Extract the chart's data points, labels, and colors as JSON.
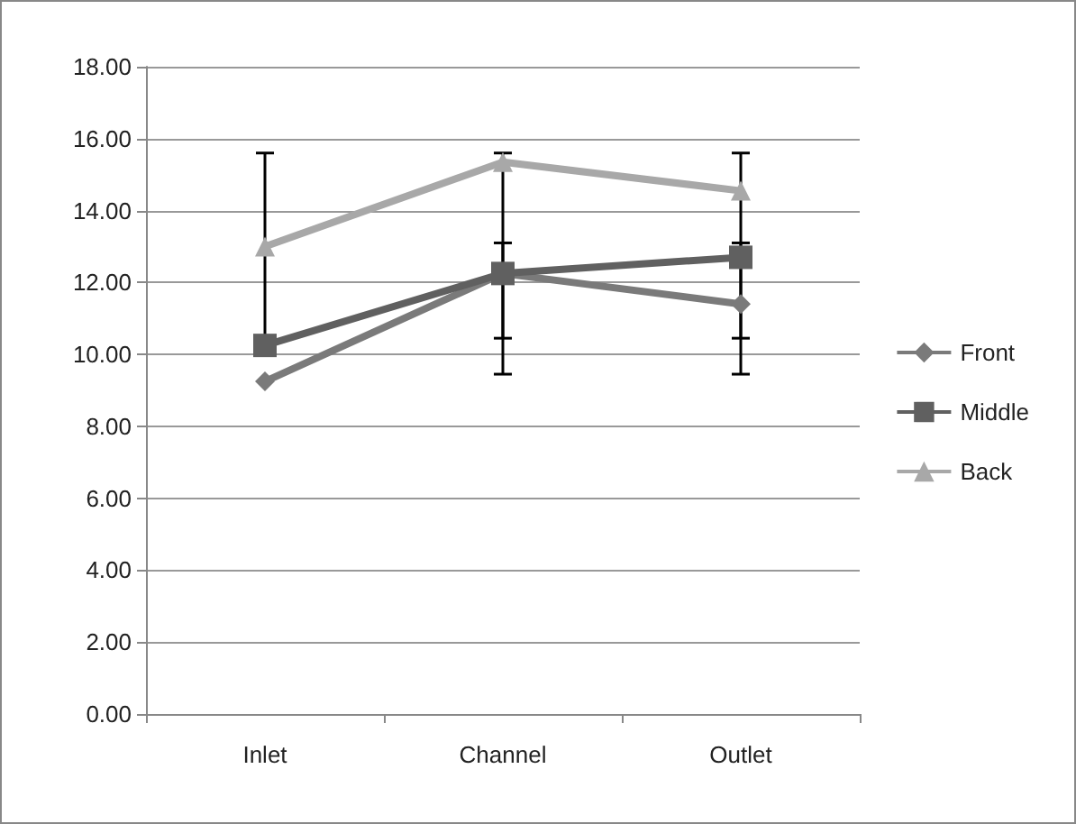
{
  "chart_data": {
    "type": "line",
    "categories": [
      "Inlet",
      "Channel",
      "Outlet"
    ],
    "series": [
      {
        "name": "Front",
        "color": "#7a7a7a",
        "marker": "diamond",
        "values": [
          9.25,
          12.25,
          11.4
        ]
      },
      {
        "name": "Middle",
        "color": "#606060",
        "marker": "square",
        "values": [
          10.25,
          12.25,
          12.7
        ],
        "errors": [
          [
            10.25,
            15.6
          ],
          [
            10.45,
            13.1
          ],
          [
            10.45,
            13.1
          ]
        ]
      },
      {
        "name": "Back",
        "color": "#a8a8a8",
        "marker": "triangle",
        "values": [
          13.0,
          15.35,
          14.55
        ],
        "errors": [
          null,
          [
            9.45,
            15.6
          ],
          [
            9.45,
            15.6
          ]
        ]
      }
    ],
    "ylim": [
      0,
      18
    ],
    "yticks": [
      {
        "value": 0,
        "label": "0.00"
      },
      {
        "value": 2,
        "label": "2.00"
      },
      {
        "value": 4,
        "label": "4.00"
      },
      {
        "value": 6,
        "label": "6.00"
      },
      {
        "value": 8,
        "label": "8.00"
      },
      {
        "value": 10,
        "label": "10.00"
      },
      {
        "value": 12,
        "label": "12.00"
      },
      {
        "value": 14,
        "label": "14.00"
      },
      {
        "value": 16,
        "label": "16.00"
      },
      {
        "value": 18,
        "label": "18.00"
      }
    ],
    "grid": "y",
    "legend": "right"
  }
}
